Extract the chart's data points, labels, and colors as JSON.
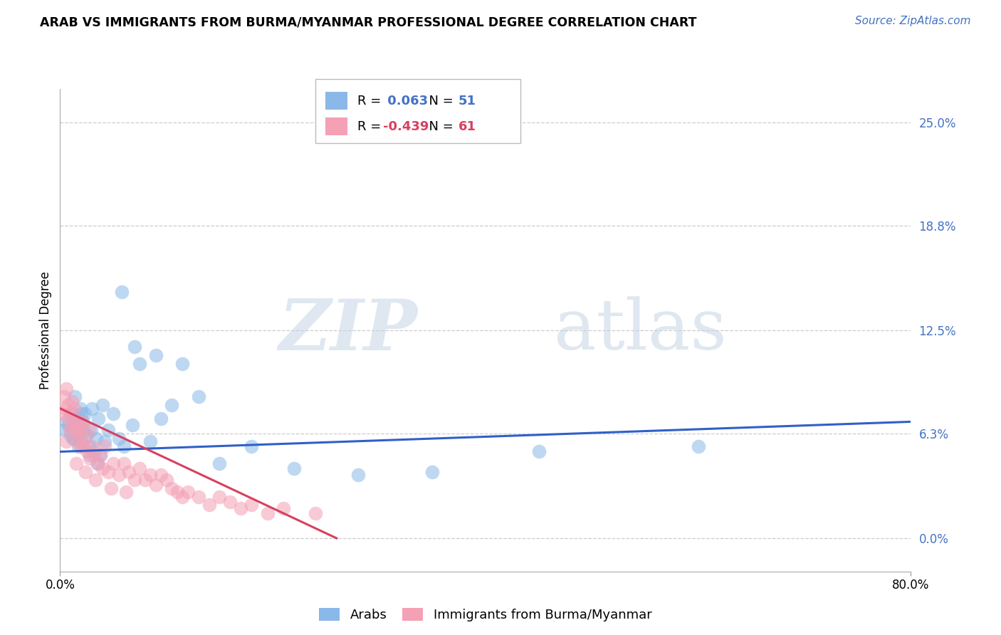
{
  "title": "ARAB VS IMMIGRANTS FROM BURMA/MYANMAR PROFESSIONAL DEGREE CORRELATION CHART",
  "source": "Source: ZipAtlas.com",
  "ylabel": "Professional Degree",
  "ylabel_values": [
    0.0,
    6.3,
    12.5,
    18.8,
    25.0
  ],
  "xlim": [
    0.0,
    80.0
  ],
  "ylim": [
    -2.0,
    27.0
  ],
  "r_arab": 0.063,
  "n_arab": 51,
  "r_burma": -0.439,
  "n_burma": 61,
  "color_arab": "#8AB8E8",
  "color_burma": "#F4A0B5",
  "trendline_arab_color": "#3060C8",
  "trendline_burma_color": "#D84060",
  "watermark_zip": "ZIP",
  "watermark_atlas": "atlas",
  "legend_label_arab": "Arabs",
  "legend_label_burma": "Immigrants from Burma/Myanmar",
  "arab_x": [
    0.4,
    0.6,
    0.8,
    1.0,
    1.1,
    1.2,
    1.4,
    1.5,
    1.6,
    1.7,
    1.8,
    1.9,
    2.0,
    2.1,
    2.2,
    2.3,
    2.5,
    2.7,
    2.9,
    3.0,
    3.2,
    3.4,
    3.6,
    3.8,
    4.0,
    4.5,
    5.0,
    5.5,
    6.0,
    6.8,
    7.5,
    8.5,
    9.5,
    10.5,
    11.5,
    13.0,
    15.0,
    18.0,
    22.0,
    28.0,
    35.0,
    45.0,
    60.0,
    1.3,
    2.0,
    2.8,
    3.5,
    4.2,
    5.8,
    7.0,
    9.0
  ],
  "arab_y": [
    6.5,
    7.0,
    6.8,
    6.2,
    7.5,
    6.0,
    8.5,
    6.8,
    7.2,
    5.5,
    6.8,
    7.8,
    5.8,
    7.0,
    6.5,
    7.5,
    6.2,
    5.5,
    6.5,
    7.8,
    5.2,
    6.0,
    7.2,
    5.0,
    8.0,
    6.5,
    7.5,
    6.0,
    5.5,
    6.8,
    10.5,
    5.8,
    7.2,
    8.0,
    10.5,
    8.5,
    4.5,
    5.5,
    4.2,
    3.8,
    4.0,
    5.2,
    5.5,
    6.0,
    7.5,
    5.0,
    4.5,
    5.8,
    14.8,
    11.5,
    11.0
  ],
  "burma_x": [
    0.2,
    0.4,
    0.5,
    0.6,
    0.7,
    0.8,
    0.9,
    1.0,
    1.1,
    1.2,
    1.3,
    1.4,
    1.5,
    1.6,
    1.7,
    1.8,
    1.9,
    2.0,
    2.1,
    2.2,
    2.3,
    2.5,
    2.7,
    2.8,
    3.0,
    3.2,
    3.5,
    3.8,
    4.0,
    4.2,
    4.5,
    5.0,
    5.5,
    6.0,
    6.5,
    7.0,
    7.5,
    8.0,
    8.5,
    9.0,
    9.5,
    10.0,
    10.5,
    11.0,
    11.5,
    12.0,
    13.0,
    14.0,
    15.0,
    16.0,
    17.0,
    18.0,
    19.5,
    21.0,
    24.0,
    0.6,
    1.5,
    2.4,
    3.3,
    4.8,
    6.2
  ],
  "burma_y": [
    7.5,
    8.5,
    7.8,
    9.0,
    8.0,
    7.2,
    6.5,
    7.5,
    8.2,
    6.8,
    7.8,
    6.5,
    7.0,
    5.8,
    6.5,
    6.2,
    5.5,
    7.0,
    6.8,
    5.5,
    6.0,
    5.2,
    6.5,
    4.8,
    5.5,
    5.0,
    4.5,
    5.0,
    4.2,
    5.5,
    4.0,
    4.5,
    3.8,
    4.5,
    4.0,
    3.5,
    4.2,
    3.5,
    3.8,
    3.2,
    3.8,
    3.5,
    3.0,
    2.8,
    2.5,
    2.8,
    2.5,
    2.0,
    2.5,
    2.2,
    1.8,
    2.0,
    1.5,
    1.8,
    1.5,
    5.8,
    4.5,
    4.0,
    3.5,
    3.0,
    2.8
  ],
  "arab_trend_x": [
    0,
    80
  ],
  "arab_trend_y": [
    5.2,
    7.0
  ],
  "burma_trend_x": [
    0,
    26
  ],
  "burma_trend_y": [
    7.8,
    0.0
  ]
}
